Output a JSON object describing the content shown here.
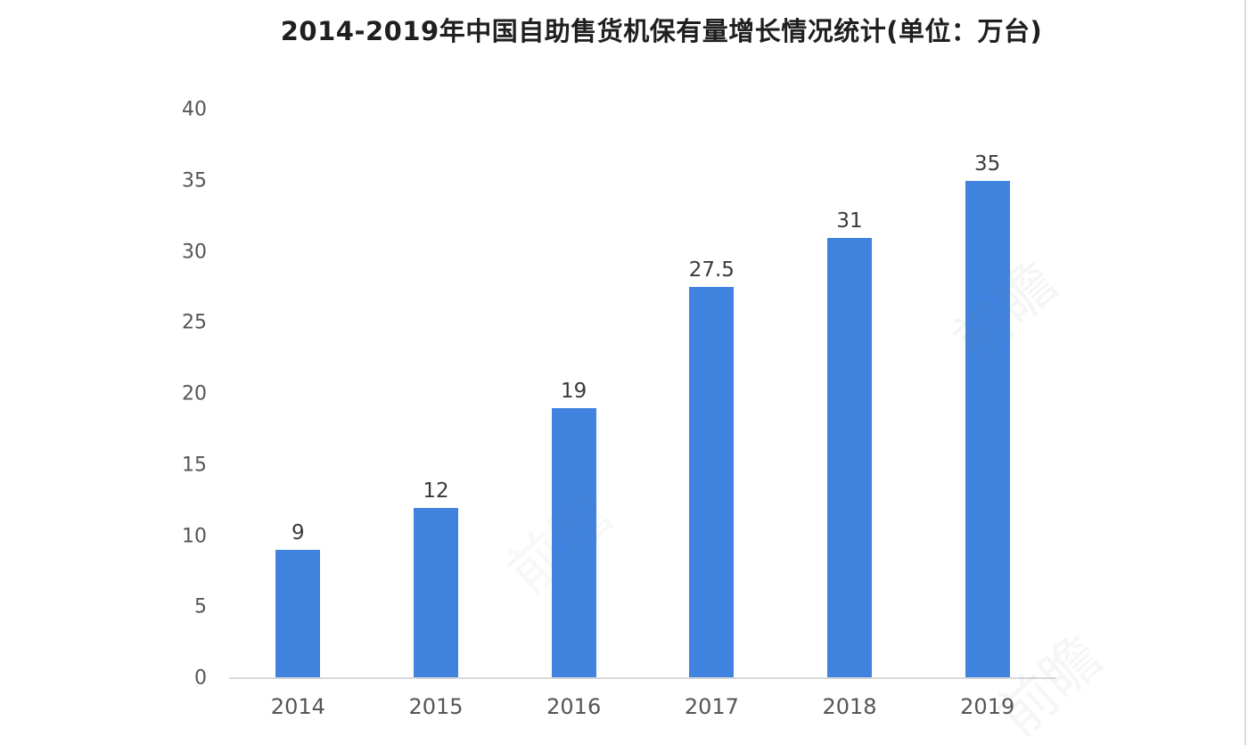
{
  "chart_data": {
    "type": "bar",
    "title": "2014-2019年中国自助售货机保有量增长情况统计(单位：万台)",
    "categories": [
      "2014",
      "2015",
      "2016",
      "2017",
      "2018",
      "2019"
    ],
    "values": [
      9,
      12,
      19,
      27.5,
      31,
      35
    ],
    "y_ticks": [
      0,
      5,
      10,
      15,
      20,
      25,
      30,
      35,
      40
    ],
    "ylim": [
      0,
      40
    ],
    "unit": "万台",
    "bar_color": "#3f83de",
    "axis_line_color": "#d8d8d8",
    "grid": false,
    "legend": false
  },
  "watermark": {
    "text": "前瞻"
  }
}
